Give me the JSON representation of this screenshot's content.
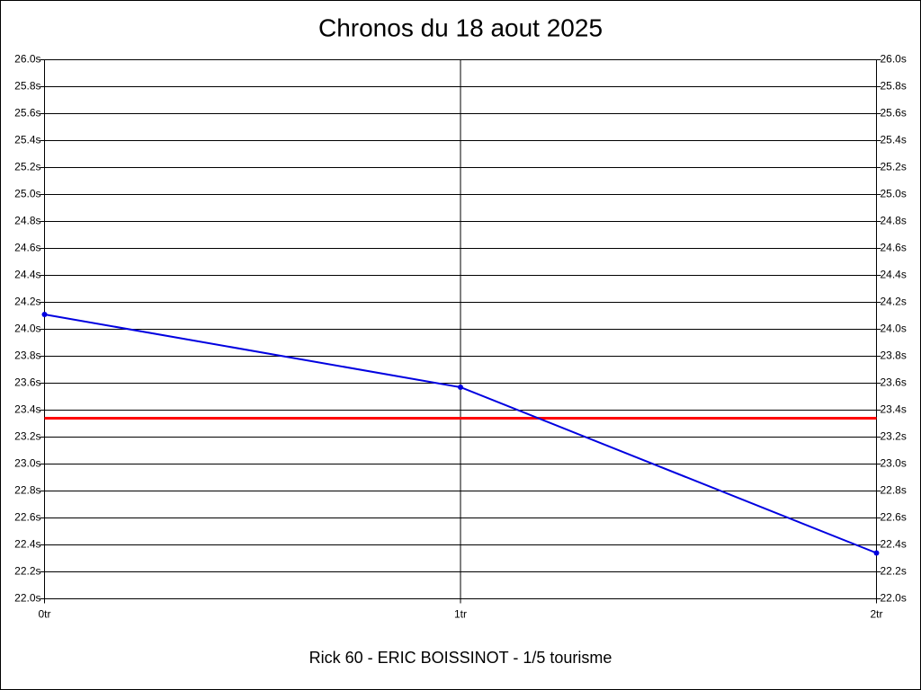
{
  "chart_data": {
    "type": "line",
    "title": "Chronos du 18 aout 2025",
    "subtitle": "Rick 60 - ERIC BOISSINOT - 1/5 tourisme",
    "x": [
      0,
      1,
      2
    ],
    "xlim": [
      0,
      2
    ],
    "xticks": [
      {
        "value": 0,
        "label": "0tr"
      },
      {
        "value": 1,
        "label": "1tr"
      },
      {
        "value": 2,
        "label": "2tr"
      }
    ],
    "series": [
      {
        "color": "#0000e0",
        "values": [
          24.11,
          23.57,
          22.34
        ]
      }
    ],
    "reference_line": {
      "value": 23.34,
      "color": "#ff0000"
    },
    "ylim": [
      22.0,
      26.0
    ],
    "yticks": [
      {
        "value": 22.0,
        "label": "22.0s"
      },
      {
        "value": 22.2,
        "label": "22.2s"
      },
      {
        "value": 22.4,
        "label": "22.4s"
      },
      {
        "value": 22.6,
        "label": "22.6s"
      },
      {
        "value": 22.8,
        "label": "22.8s"
      },
      {
        "value": 23.0,
        "label": "23.0s"
      },
      {
        "value": 23.2,
        "label": "23.2s"
      },
      {
        "value": 23.4,
        "label": "23.4s"
      },
      {
        "value": 23.6,
        "label": "23.6s"
      },
      {
        "value": 23.8,
        "label": "23.8s"
      },
      {
        "value": 24.0,
        "label": "24.0s"
      },
      {
        "value": 24.2,
        "label": "24.2s"
      },
      {
        "value": 24.4,
        "label": "24.4s"
      },
      {
        "value": 24.6,
        "label": "24.6s"
      },
      {
        "value": 24.8,
        "label": "24.8s"
      },
      {
        "value": 25.0,
        "label": "25.0s"
      },
      {
        "value": 25.2,
        "label": "25.2s"
      },
      {
        "value": 25.4,
        "label": "25.4s"
      },
      {
        "value": 25.6,
        "label": "25.6s"
      },
      {
        "value": 25.8,
        "label": "25.8s"
      },
      {
        "value": 26.0,
        "label": "26.0s"
      }
    ],
    "y2lim": [
      22.0,
      26.0
    ],
    "y2ticks": [
      {
        "value": 22.0,
        "label": "22.0s"
      },
      {
        "value": 22.2,
        "label": "22.2s"
      },
      {
        "value": 22.4,
        "label": "22.4s"
      },
      {
        "value": 22.6,
        "label": "22.6s"
      },
      {
        "value": 22.8,
        "label": "22.8s"
      },
      {
        "value": 23.0,
        "label": "23.0s"
      },
      {
        "value": 23.2,
        "label": "23.2s"
      },
      {
        "value": 23.4,
        "label": "23.4s"
      },
      {
        "value": 23.6,
        "label": "23.6s"
      },
      {
        "value": 23.8,
        "label": "23.8s"
      },
      {
        "value": 24.0,
        "label": "24.0s"
      },
      {
        "value": 24.2,
        "label": "24.2s"
      },
      {
        "value": 24.4,
        "label": "24.4s"
      },
      {
        "value": 24.6,
        "label": "24.6s"
      },
      {
        "value": 24.8,
        "label": "24.8s"
      },
      {
        "value": 25.0,
        "label": "25.0s"
      },
      {
        "value": 25.2,
        "label": "25.2s"
      },
      {
        "value": 25.4,
        "label": "25.4s"
      },
      {
        "value": 25.6,
        "label": "25.6s"
      },
      {
        "value": 25.8,
        "label": "25.8s"
      },
      {
        "value": 26.0,
        "label": "26.0s"
      }
    ],
    "grid": true
  }
}
